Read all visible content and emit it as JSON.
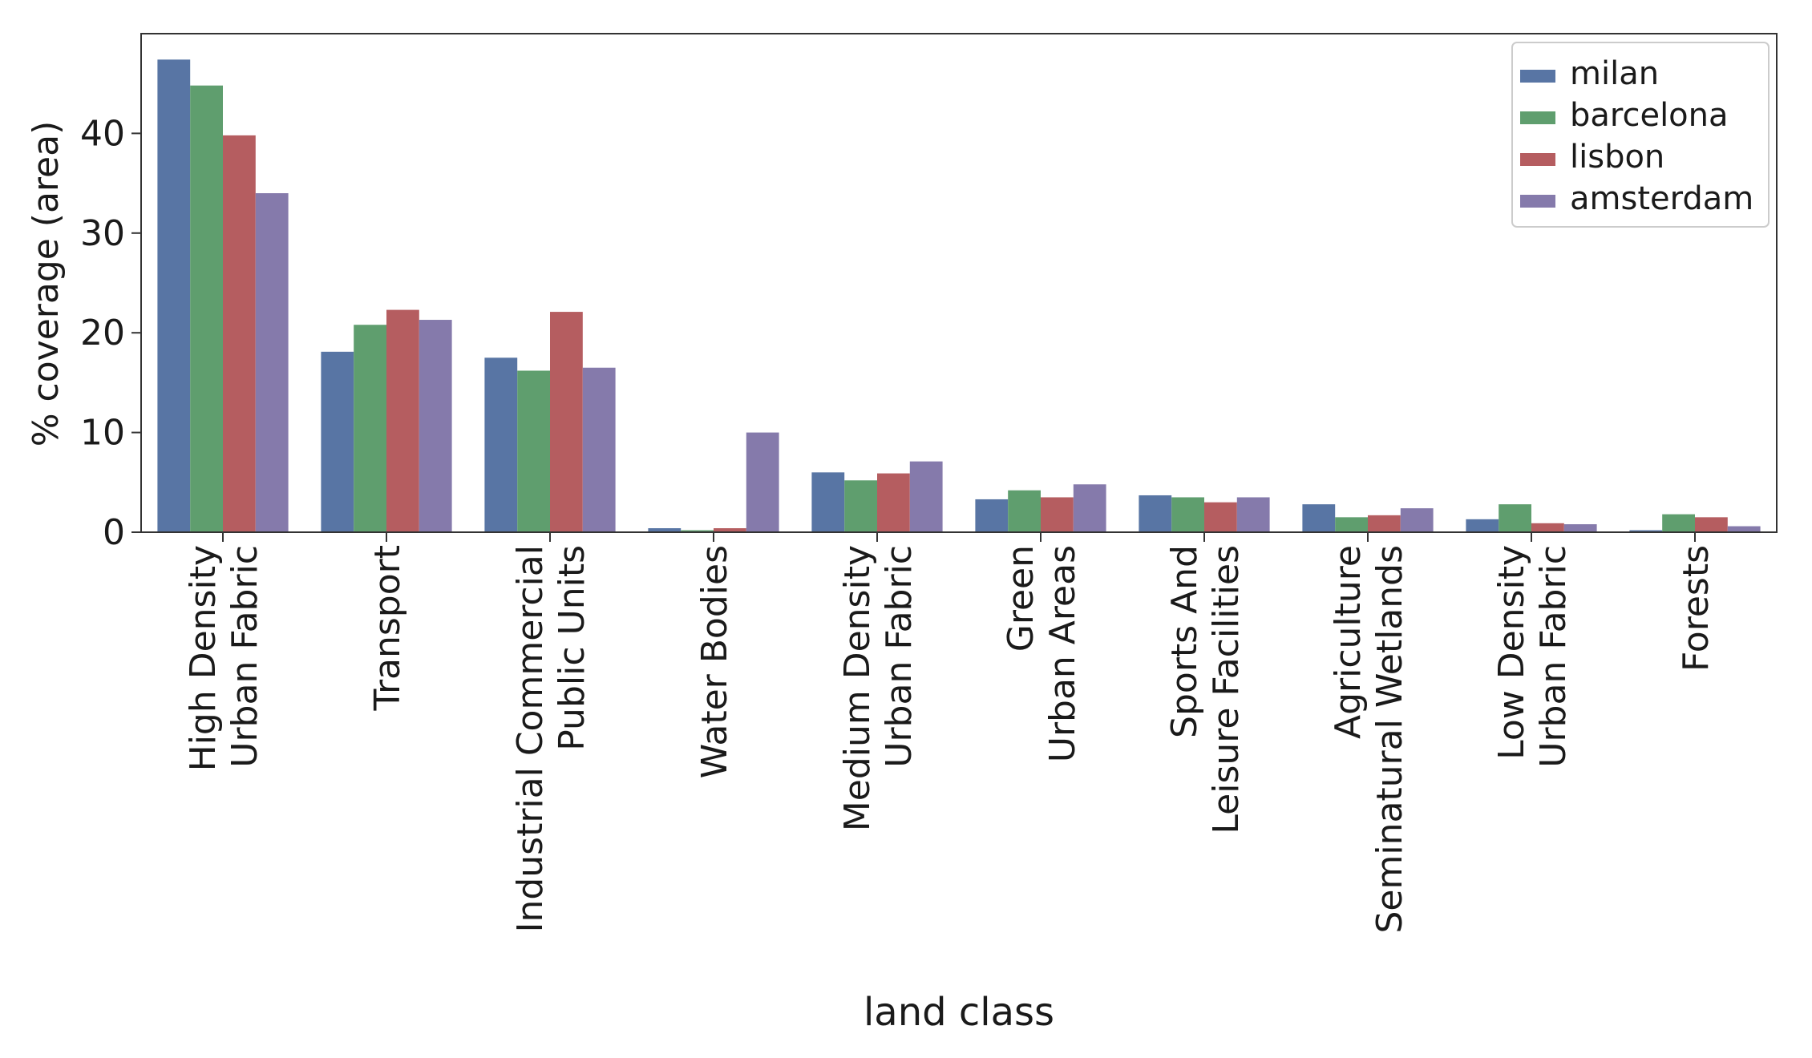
{
  "chart_data": {
    "type": "bar",
    "title": "",
    "xlabel": "land class",
    "ylabel": "% coverage (area)",
    "ylim": [
      0,
      50
    ],
    "yticks": [
      0,
      10,
      20,
      30,
      40
    ],
    "grid": false,
    "legend_position": "top-right",
    "categories": [
      [
        "High Density",
        "Urban Fabric"
      ],
      [
        "Transport"
      ],
      [
        "Industrial Commercial",
        "Public Units"
      ],
      [
        "Water Bodies"
      ],
      [
        "Medium Density",
        "Urban Fabric"
      ],
      [
        "Green",
        "Urban Areas"
      ],
      [
        "Sports And",
        "Leisure Facilities"
      ],
      [
        "Agriculture",
        "Seminatural Wetlands"
      ],
      [
        "Low Density",
        "Urban Fabric"
      ],
      [
        "Forests"
      ]
    ],
    "series": [
      {
        "name": "milan",
        "color": "#5875a4",
        "values": [
          47.4,
          18.1,
          17.5,
          0.4,
          6.0,
          3.3,
          3.7,
          2.8,
          1.3,
          0.2
        ]
      },
      {
        "name": "barcelona",
        "color": "#5f9e6e",
        "values": [
          44.8,
          20.8,
          16.2,
          0.2,
          5.2,
          4.2,
          3.5,
          1.5,
          2.8,
          1.8
        ]
      },
      {
        "name": "lisbon",
        "color": "#b55d60",
        "values": [
          39.8,
          22.3,
          22.1,
          0.4,
          5.9,
          3.5,
          3.0,
          1.7,
          0.9,
          1.5
        ]
      },
      {
        "name": "amsterdam",
        "color": "#857aab",
        "values": [
          34.0,
          21.3,
          16.5,
          10.0,
          7.1,
          4.8,
          3.5,
          2.4,
          0.8,
          0.6
        ]
      }
    ]
  }
}
